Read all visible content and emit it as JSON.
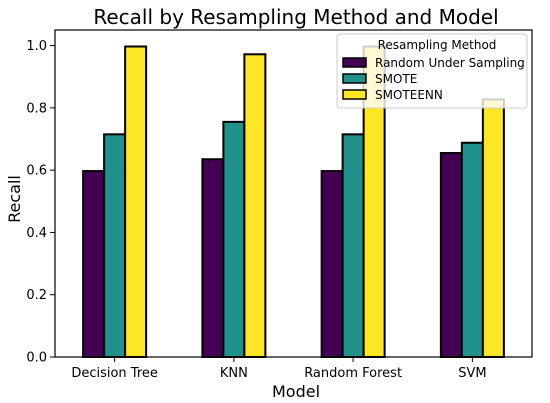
{
  "chart_data": {
    "type": "bar",
    "title": "Recall by Resampling Method and Model",
    "xlabel": "Model",
    "ylabel": "Recall",
    "categories": [
      "Decision Tree",
      "KNN",
      "Random Forest",
      "SVM"
    ],
    "ylim": [
      0,
      1.05
    ],
    "yticks": [
      "0.0",
      "0.2",
      "0.4",
      "0.6",
      "0.8",
      "1.0"
    ],
    "legend": {
      "title": "Resampling Method",
      "placement": "top-right"
    },
    "grid": false,
    "series": [
      {
        "name": "Random Under Sampling",
        "color": "#440154",
        "values": [
          0.597,
          0.635,
          0.597,
          0.655
        ]
      },
      {
        "name": "SMOTE",
        "color": "#21918c",
        "values": [
          0.715,
          0.755,
          0.715,
          0.688
        ]
      },
      {
        "name": "SMOTEENN",
        "color": "#fde725",
        "values": [
          0.997,
          0.972,
          0.997,
          0.827
        ]
      }
    ]
  }
}
